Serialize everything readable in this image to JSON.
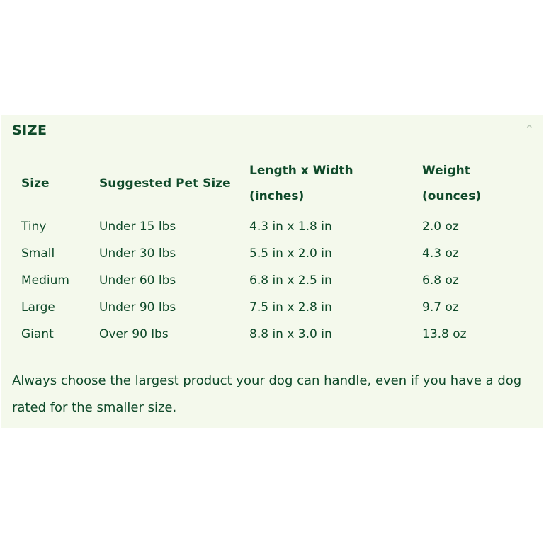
{
  "section": {
    "title": "SIZE",
    "toggle_icon": "chevron-up-icon"
  },
  "table": {
    "headers": [
      "Size",
      "Suggested Pet Size",
      "Length x Width (inches)",
      "Weight (ounces)"
    ],
    "rows": [
      [
        "Tiny",
        "Under 15 lbs",
        "4.3 in x 1.8 in",
        "2.0 oz"
      ],
      [
        "Small",
        "Under 30 lbs",
        "5.5 in x 2.0 in",
        "4.3 oz"
      ],
      [
        "Medium",
        "Under 60 lbs",
        "6.8 in x 2.5 in",
        "6.8 oz"
      ],
      [
        "Large",
        "Under 90 lbs",
        "7.5 in x 2.8 in",
        "9.7 oz"
      ],
      [
        "Giant",
        "Over 90 lbs",
        "8.8 in x 3.0 in",
        "13.8 oz"
      ]
    ]
  },
  "note": "Always choose the largest product your dog can handle, even if you have a dog rated for the smaller size.",
  "colors": {
    "text": "#0f4a2a",
    "background": "#f4f9ec"
  }
}
